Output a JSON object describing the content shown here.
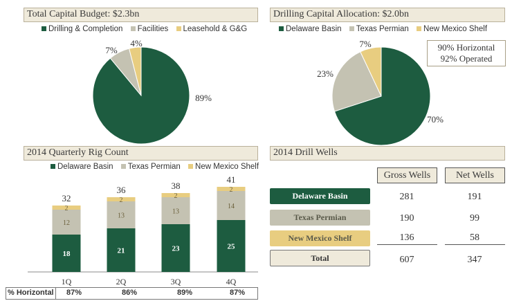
{
  "colors": {
    "delaware": "#1d5c40",
    "texas": "#c4c2b2",
    "newmexico": "#e8cd80",
    "header_bg": "#efeadb"
  },
  "panels": {
    "total_capital": {
      "title": "Total Capital Budget: $2.3bn",
      "legend": [
        "Drilling & Completion",
        "Facilities",
        "Leasehold & G&G"
      ]
    },
    "drilling_capital": {
      "title": "Drilling Capital Allocation: $2.0bn",
      "legend": [
        "Delaware Basin",
        "Texas Permian",
        "New Mexico Shelf"
      ],
      "callout": [
        "90% Horizontal",
        "92% Operated"
      ]
    },
    "rig_count": {
      "title": "2014 Quarterly Rig Count",
      "legend": [
        "Delaware Basin",
        "Texas Permian",
        "New Mexico Shelf"
      ],
      "pct_label": "% Horizontal",
      "pct_values": [
        "87%",
        "86%",
        "89%",
        "87%"
      ]
    },
    "drill_wells": {
      "title": "2014 Drill Wells",
      "col_gross": "Gross Wells",
      "col_net": "Net Wells",
      "rows": [
        {
          "label": "Delaware Basin",
          "gross": "281",
          "net": "191"
        },
        {
          "label": "Texas Permian",
          "gross": "190",
          "net": "99"
        },
        {
          "label": "New Mexico Shelf",
          "gross": "136",
          "net": "58"
        },
        {
          "label": "Total",
          "gross": "607",
          "net": "347"
        }
      ]
    }
  },
  "chart_data": [
    {
      "type": "pie",
      "title": "Total Capital Budget: $2.3bn",
      "labels": [
        "Drilling & Completion",
        "Facilities",
        "Leasehold & G&G"
      ],
      "values": [
        89,
        7,
        4
      ],
      "value_labels": [
        "89%",
        "7%",
        "4%"
      ],
      "legend": "top"
    },
    {
      "type": "pie",
      "title": "Drilling Capital Allocation: $2.0bn",
      "labels": [
        "Delaware Basin",
        "Texas Permian",
        "New Mexico Shelf"
      ],
      "values": [
        70,
        23,
        7
      ],
      "value_labels": [
        "70%",
        "23%",
        "7%"
      ],
      "legend": "top"
    },
    {
      "type": "bar",
      "stacked": true,
      "title": "2014 Quarterly Rig Count",
      "categories": [
        "1Q",
        "2Q",
        "3Q",
        "4Q"
      ],
      "series": [
        {
          "name": "Delaware Basin",
          "values": [
            18,
            21,
            23,
            25
          ]
        },
        {
          "name": "Texas Permian",
          "values": [
            12,
            13,
            13,
            14
          ]
        },
        {
          "name": "New Mexico Shelf",
          "values": [
            2,
            2,
            2,
            2
          ]
        }
      ],
      "totals": [
        32,
        36,
        38,
        41
      ],
      "legend": "top",
      "grid": false
    }
  ]
}
